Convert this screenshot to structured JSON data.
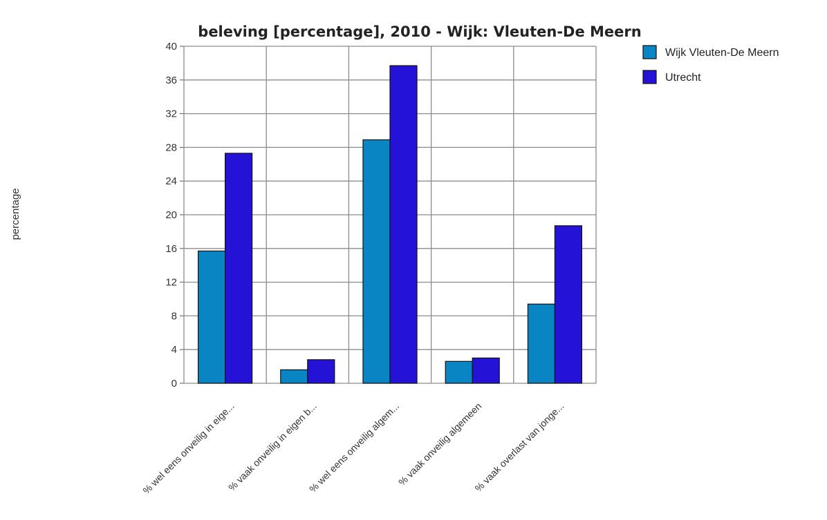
{
  "chart_data": {
    "type": "bar",
    "title": "beleving [percentage], 2010 - Wijk: Vleuten-De Meern",
    "xlabel": "",
    "ylabel": "percentage",
    "ylim": [
      0,
      40
    ],
    "yticks": [
      0,
      4,
      8,
      12,
      16,
      20,
      24,
      28,
      32,
      36,
      40
    ],
    "grid": true,
    "legend_position": "top-right",
    "categories": [
      "% wel eens onveilig in eige...",
      "% vaak onveilig in eigen b...",
      "% wel eens onveilig algem...",
      "% vaak onveilig algemeen",
      "% vaak overlast van jonge..."
    ],
    "series": [
      {
        "name": "Wijk Vleuten-De Meern",
        "color": "#0a85c3",
        "values": [
          15.7,
          1.6,
          28.9,
          2.6,
          9.4
        ]
      },
      {
        "name": "Utrecht",
        "color": "#2413d6",
        "values": [
          27.3,
          2.8,
          37.7,
          3.0,
          18.7
        ]
      }
    ]
  }
}
